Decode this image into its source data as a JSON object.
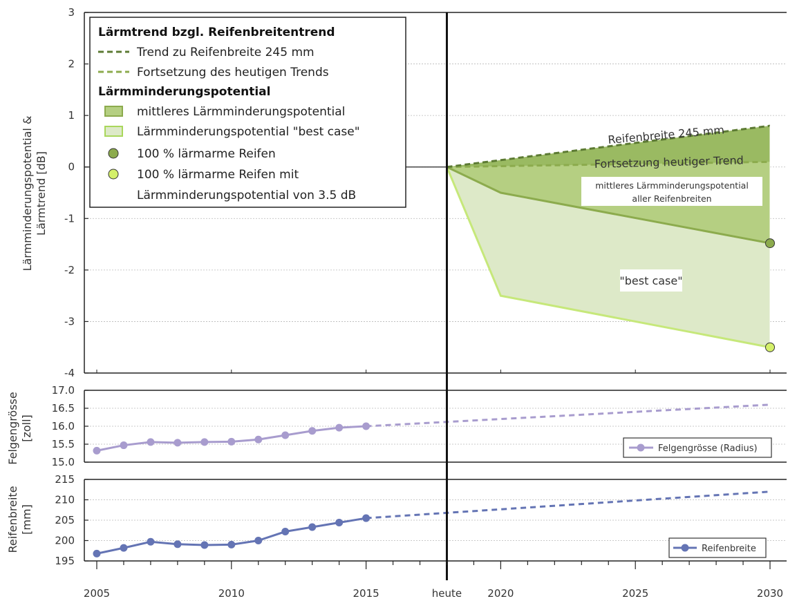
{
  "chart_data": [
    {
      "type": "area",
      "ylabel_lines": [
        "Lärmminderungspotential &",
        "Lärmtrend [dB]"
      ],
      "ylim": [
        -4,
        3
      ],
      "yticks": [
        -4,
        -3,
        -2,
        -1,
        0,
        1,
        2,
        3
      ],
      "xlim": [
        2005,
        2030
      ],
      "heute_year": 2018,
      "legend": {
        "header1": "Lärmtrend bzgl. Reifenbreitentrend",
        "item_trend245": "Trend zu Reifenbreite 245 mm",
        "item_trend_today": "Fortsetzung des heutigen Trends",
        "header2": "Lärmminderungspotential",
        "item_mittleres": "mittleres Lärmminderungspotential",
        "item_best": "Lärmminderungspotential \"best case\"",
        "item_100": "100 % lärmarme Reifen",
        "item_100_35_line1": "100 % lärmarme Reifen mit",
        "item_100_35_line2": "Lärmminderungspotential von 3.5 dB"
      },
      "series": [
        {
          "name": "Trend zu Reifenbreite 245 mm",
          "x": [
            2018,
            2030
          ],
          "y": [
            0,
            0.8
          ]
        },
        {
          "name": "Fortsetzung des heutigen Trends",
          "x": [
            2018,
            2030
          ],
          "y": [
            0,
            0.1
          ]
        },
        {
          "name": "mittleres Lärmminderungspotential",
          "x": [
            2018,
            2020,
            2030
          ],
          "y": [
            0,
            -0.5,
            -1.48
          ]
        },
        {
          "name": "Lärmminderungspotential \"best case\"",
          "x": [
            2018,
            2020,
            2030
          ],
          "y": [
            0,
            -2.5,
            -3.5
          ]
        }
      ],
      "baseline": {
        "x": [
          2005,
          2018
        ],
        "y": [
          0,
          0
        ]
      },
      "markers": [
        {
          "name": "100 % lärmarme Reifen",
          "x": 2030,
          "y": -1.48
        },
        {
          "name": "100 % lärmarme Reifen mit Lärmminderungspotential von 3.5 dB",
          "x": 2030,
          "y": -3.5
        }
      ],
      "annotations": {
        "reifenbreite": "Reifenbreite 245 mm",
        "fortsetzung": "Fortsetzung heutiger Trend",
        "mittleres_line1": "mittleres Lärmminderungspotential",
        "mittleres_line2": "aller Reifenbreiten",
        "best": "\"best case\""
      },
      "colors": {
        "dark_green": "#5c7a33",
        "mid_green": "#8cab4d",
        "light_green": "#c6e87a",
        "fill_mid": "#b5cf82",
        "fill_light": "#dde9c8"
      }
    },
    {
      "type": "line",
      "ylabel_lines": [
        "Felgengrösse",
        "[zoll]"
      ],
      "ylim": [
        15.0,
        17.0
      ],
      "yticks": [
        15.0,
        15.5,
        16.0,
        16.5,
        17.0
      ],
      "series": [
        {
          "name": "Felgengrösse (Radius)",
          "x": [
            2005,
            2006,
            2007,
            2008,
            2009,
            2010,
            2011,
            2012,
            2013,
            2014,
            2015
          ],
          "y": [
            15.32,
            15.47,
            15.56,
            15.54,
            15.56,
            15.57,
            15.63,
            15.75,
            15.87,
            15.96,
            16.0
          ]
        }
      ],
      "projection": {
        "x": [
          2015,
          2030
        ],
        "y": [
          16.0,
          16.6
        ]
      },
      "color": "#a89cce"
    },
    {
      "type": "line",
      "ylabel_lines": [
        "Reifenbreite",
        "[mm]"
      ],
      "ylim": [
        195,
        215
      ],
      "yticks": [
        195,
        200,
        205,
        210,
        215
      ],
      "series": [
        {
          "name": "Reifenbreite",
          "x": [
            2005,
            2006,
            2007,
            2008,
            2009,
            2010,
            2011,
            2012,
            2013,
            2014,
            2015
          ],
          "y": [
            196.8,
            198.2,
            199.7,
            199.1,
            198.9,
            199.0,
            200.0,
            202.2,
            203.3,
            204.4,
            205.5
          ]
        }
      ],
      "projection": {
        "x": [
          2015,
          2030
        ],
        "y": [
          205.5,
          212.0
        ]
      },
      "color": "#6474b4"
    }
  ],
  "x_axis": {
    "ticks": [
      {
        "value": 2005,
        "label": "2005"
      },
      {
        "value": 2010,
        "label": "2010"
      },
      {
        "value": 2015,
        "label": "2015"
      },
      {
        "value": 2018,
        "label": "heute"
      },
      {
        "value": 2020,
        "label": "2020"
      },
      {
        "value": 2025,
        "label": "2025"
      },
      {
        "value": 2030,
        "label": "2030"
      }
    ]
  }
}
